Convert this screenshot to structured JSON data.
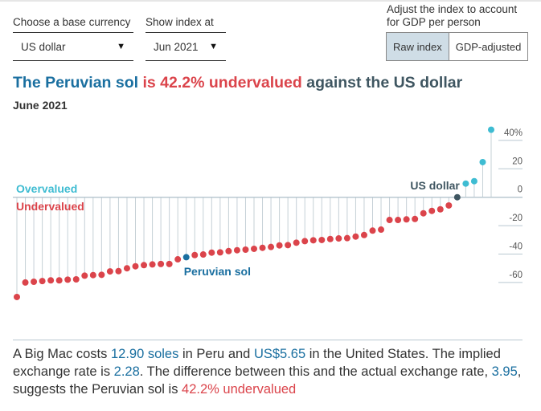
{
  "controls": {
    "base_currency_label": "Choose a base currency",
    "base_currency_value": "US dollar",
    "index_date_label": "Show index at",
    "index_date_value": "Jun 2021",
    "gdp_label_line1": "Adjust the index to account",
    "gdp_label_line2": "for GDP per person",
    "toggle_options": [
      "Raw index",
      "GDP-adjusted"
    ],
    "toggle_selected": "Raw index"
  },
  "headline": {
    "part1": "The Peruvian sol",
    "part2": " is 42.2% undervalued",
    "part3": " against the US dollar"
  },
  "subtitle": "June 2021",
  "chart_data": {
    "type": "lollipop",
    "yunit": "%",
    "ylim": [
      -72,
      48
    ],
    "yticks": [
      40,
      20,
      0,
      -20,
      -40,
      -60
    ],
    "ytick_labels": [
      "40%",
      "20",
      "0",
      "-20",
      "-40",
      "-60"
    ],
    "labels": {
      "over": "Overvalued",
      "under": "Undervalued",
      "base": "US dollar",
      "highlight": "Peruvian sol"
    },
    "highlight_index": 20,
    "base_index": 52,
    "values": [
      -70.2,
      -60,
      -59.5,
      -59,
      -58.5,
      -58.5,
      -58,
      -57.8,
      -55.2,
      -54.8,
      -54.6,
      -52.2,
      -52,
      -50,
      -48.6,
      -47.8,
      -47.3,
      -47,
      -47,
      -43.7,
      -42.2,
      -40.7,
      -40.3,
      -39,
      -38.8,
      -37.9,
      -37.3,
      -36.9,
      -36.3,
      -35.6,
      -35,
      -33.9,
      -33.7,
      -32,
      -30.9,
      -30.3,
      -30.1,
      -29.4,
      -29,
      -28.8,
      -27.7,
      -26.6,
      -23.5,
      -22.8,
      -16,
      -16,
      -15.6,
      -15.3,
      -11.3,
      -9.6,
      -8.5,
      -5.8,
      0,
      9.6,
      11.3,
      24.7,
      47.5
    ],
    "colors": {
      "over": "#3ebcd2",
      "under": "#db444b",
      "highlight": "#1a6fa0",
      "base": "#3f5661"
    }
  },
  "description": {
    "t1": "A Big Mac costs ",
    "local_price": "12.90 soles",
    "t2": " in Peru and ",
    "us_price": "US$5.65",
    "t3": " in the United States. The implied exchange rate is ",
    "implied_rate": "2.28",
    "t4": ". The difference between this and the actual exchange rate, ",
    "actual_rate": "3.95",
    "t5": ", suggests the Peruvian sol is ",
    "verdict": "42.2% undervalued"
  }
}
